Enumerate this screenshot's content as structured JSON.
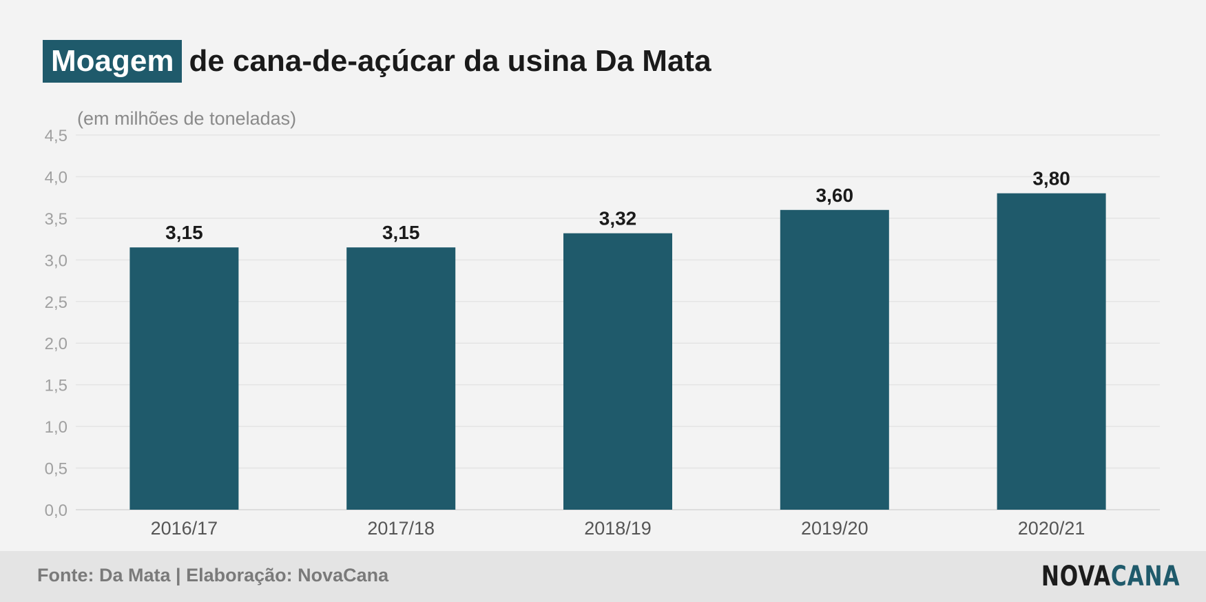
{
  "title": {
    "highlight": "Moagem",
    "rest": "de cana-de-açúcar da usina Da Mata"
  },
  "footer": {
    "source": "Fonte: Da Mata | Elaboração: NovaCana",
    "logo_part1": "NOVA",
    "logo_part2": "CANA"
  },
  "colors": {
    "accent": "#1f5a6b",
    "background": "#f3f3f3",
    "footer_bg": "#e4e4e4"
  },
  "chart_data": {
    "type": "bar",
    "unit_label": "(em milhões de toneladas)",
    "categories": [
      "2016/17",
      "2017/18",
      "2018/19",
      "2019/20",
      "2020/21"
    ],
    "values": [
      3.15,
      3.15,
      3.32,
      3.6,
      3.8
    ],
    "value_labels": [
      "3,15",
      "3,15",
      "3,32",
      "3,60",
      "3,80"
    ],
    "ylim": [
      0,
      4.5
    ],
    "yticks": [
      "0,0",
      "0,5",
      "1,0",
      "1,5",
      "2,0",
      "2,5",
      "3,0",
      "3,5",
      "4,0",
      "4,5"
    ],
    "grid": true,
    "bar_color": "#1f5a6b"
  }
}
